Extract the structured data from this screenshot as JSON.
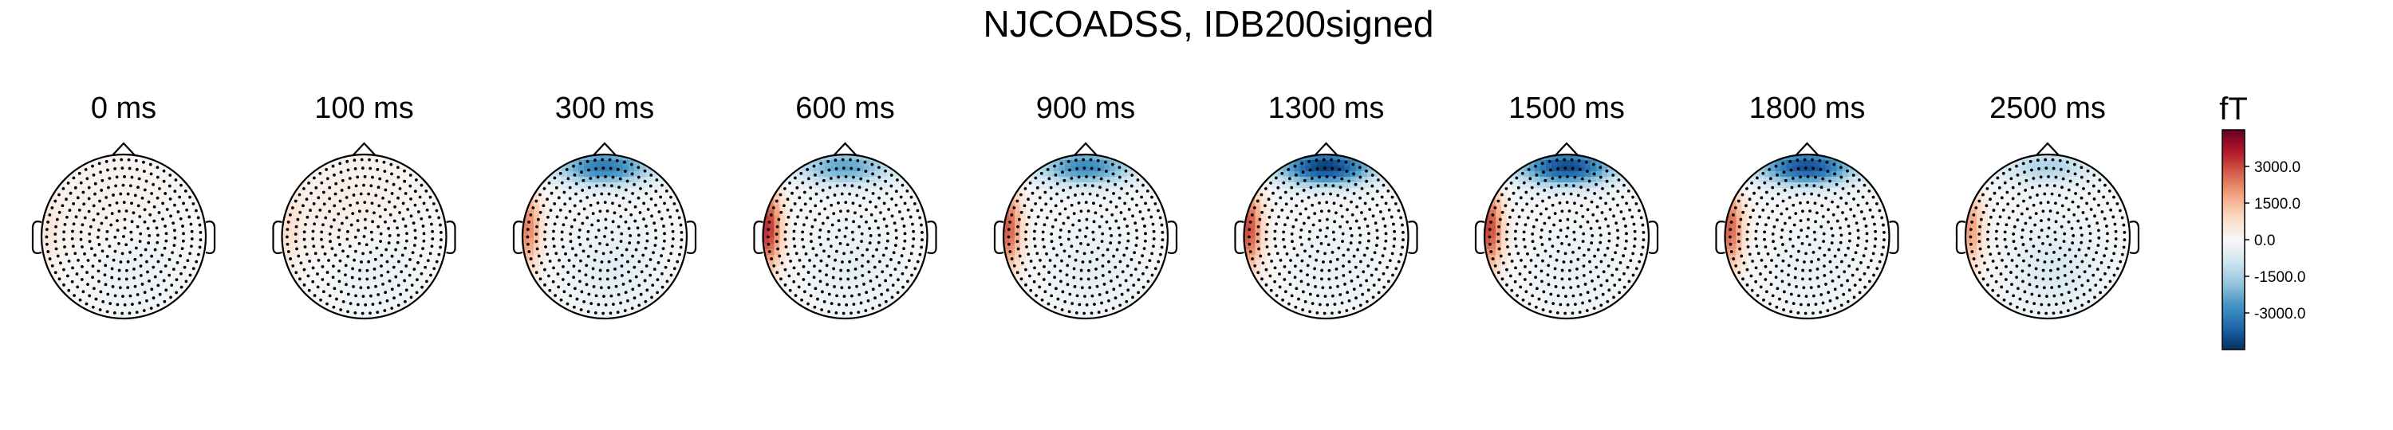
{
  "chart_data": {
    "type": "heatmap",
    "title": "NJCOADSS, IDB200signed",
    "panels": [
      {
        "label": "0 ms",
        "time_ms": 0
      },
      {
        "label": "100 ms",
        "time_ms": 100
      },
      {
        "label": "300 ms",
        "time_ms": 300
      },
      {
        "label": "600 ms",
        "time_ms": 600
      },
      {
        "label": "900 ms",
        "time_ms": 900
      },
      {
        "label": "1300 ms",
        "time_ms": 1300
      },
      {
        "label": "1500 ms",
        "time_ms": 1500
      },
      {
        "label": "1800 ms",
        "time_ms": 1800
      },
      {
        "label": "2500 ms",
        "time_ms": 2500
      }
    ],
    "colorbar": {
      "unit": "fT",
      "ticks": [
        "3000.0",
        "1500.0",
        "0.0",
        "-1500.0",
        "-3000.0"
      ],
      "tick_values": [
        3000,
        1500,
        0,
        -1500,
        -3000
      ],
      "range": [
        -4500,
        4500
      ],
      "colormap": [
        "#053061",
        "#2166ac",
        "#4393c3",
        "#92c5de",
        "#d1e5f0",
        "#f7f7f7",
        "#fddbc7",
        "#f4a582",
        "#d6604d",
        "#b2182b",
        "#67001f"
      ]
    },
    "grid": false,
    "sensor_dots": true,
    "contour_lines": true
  }
}
